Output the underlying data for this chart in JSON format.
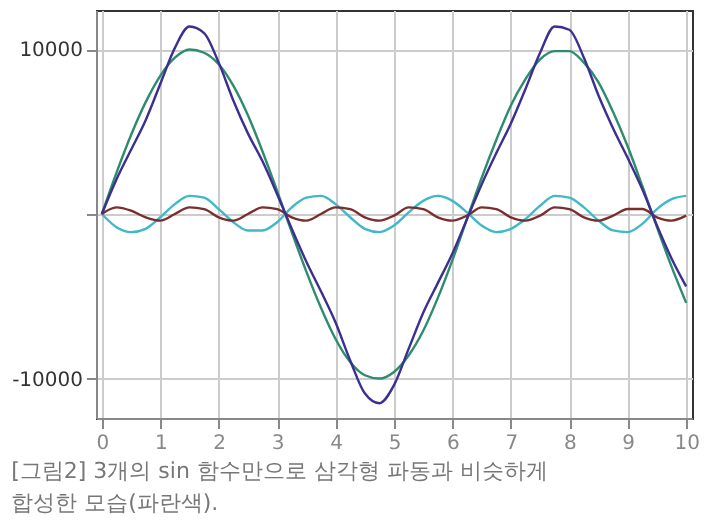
{
  "chart_data": {
    "type": "line",
    "x": [
      0,
      0.25,
      0.5,
      0.75,
      1,
      1.25,
      1.5,
      1.75,
      2,
      2.25,
      2.5,
      2.75,
      3,
      3.25,
      3.5,
      3.75,
      4,
      4.25,
      4.5,
      4.75,
      5,
      5.25,
      5.5,
      5.75,
      6,
      6.25,
      6.5,
      6.75,
      7,
      7.25,
      7.5,
      7.75,
      8,
      8.25,
      8.5,
      8.75,
      9,
      9.25,
      9.5,
      9.75,
      10
    ],
    "series": [
      {
        "color": "#2e8b6e",
        "values": [
          0,
          2500,
          4800,
          6800,
          8400,
          9500,
          10000,
          9800,
          9100,
          7800,
          6000,
          3800,
          1400,
          -1100,
          -3500,
          -5700,
          -7600,
          -9000,
          -9800,
          -10000,
          -9600,
          -8600,
          -7100,
          -5100,
          -2800,
          -300,
          2200,
          4500,
          6600,
          8200,
          9400,
          9900,
          9900,
          9200,
          8000,
          6200,
          4100,
          1700,
          -800,
          -3200,
          -5400
        ]
      },
      {
        "color": "#3fb8c8",
        "values": [
          0,
          -800,
          -1100,
          -900,
          -200,
          600,
          1100,
          1000,
          300,
          -500,
          -1000,
          -1000,
          -500,
          400,
          1000,
          1100,
          600,
          -200,
          -900,
          -1100,
          -700,
          100,
          800,
          1100,
          800,
          100,
          -700,
          -1100,
          -900,
          -300,
          500,
          1100,
          1000,
          400,
          -400,
          -1000,
          -1100,
          -600,
          300,
          900,
          1100
        ]
      },
      {
        "color": "#7a2e2e",
        "values": [
          0,
          400,
          200,
          -200,
          -400,
          0,
          400,
          300,
          -200,
          -400,
          0,
          400,
          300,
          -200,
          -400,
          0,
          400,
          300,
          -200,
          -400,
          -100,
          400,
          300,
          -200,
          -400,
          -100,
          400,
          300,
          -200,
          -400,
          -100,
          400,
          300,
          -200,
          -400,
          -100,
          300,
          300,
          -200,
          -400,
          -100
        ]
      },
      {
        "color": "#3b2f8f",
        "values": [
          0,
          2100,
          3900,
          5700,
          7900,
          10100,
          11400,
          11000,
          9200,
          6900,
          4900,
          3200,
          1200,
          -900,
          -2900,
          -4700,
          -6600,
          -8900,
          -10900,
          -11500,
          -10400,
          -8200,
          -6000,
          -4200,
          -2400,
          -300,
          1800,
          3700,
          5500,
          7600,
          9800,
          11400,
          11200,
          9500,
          7200,
          5200,
          3400,
          1500,
          -700,
          -2700,
          -4400
        ]
      }
    ],
    "xlim": [
      -0.1,
      10.1
    ],
    "ylim": [
      -12400,
      12400
    ],
    "xticks": [
      0,
      1,
      2,
      3,
      4,
      5,
      6,
      7,
      8,
      9,
      10
    ],
    "yticks": [
      -10000,
      {
        "value": 0,
        "label": null
      },
      10000
    ],
    "grid": true,
    "legend": false,
    "marker": "none",
    "line_style": "solid",
    "annotations": [
      "[그림2] 3개의 sin 함수만으로 삼각형 파동과 비슷하게 합성한 모습(파란색)."
    ]
  }
}
